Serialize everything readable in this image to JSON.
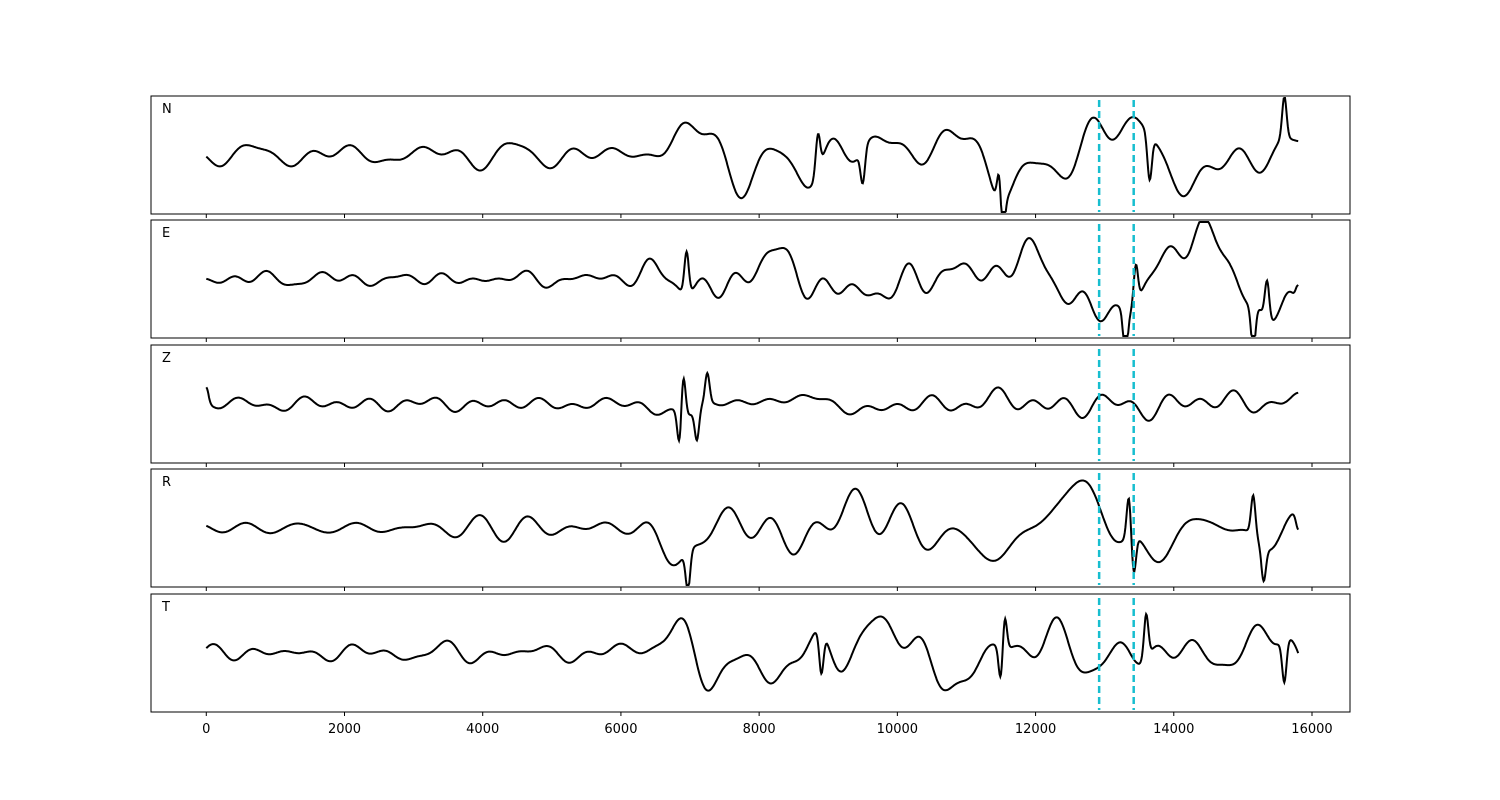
{
  "chart_data": {
    "type": "line",
    "title": "",
    "xlabel": "",
    "ylabel": "",
    "xlim": [
      -800,
      16550
    ],
    "x_ticks": [
      0,
      2000,
      4000,
      6000,
      8000,
      10000,
      12000,
      14000,
      16000
    ],
    "x_tick_labels": [
      "0",
      "2000",
      "4000",
      "6000",
      "8000",
      "10000",
      "12000",
      "14000",
      "16000"
    ],
    "sample_start": 0,
    "sample_end": 15800,
    "markers": {
      "color": "#17becf",
      "style": "dashed",
      "x": [
        12920,
        13420
      ]
    },
    "trace_color": "#000000",
    "grid": false,
    "panels": [
      {
        "name": "N",
        "onset": 6500,
        "pre_amp": 0.22,
        "post_amp": 0.95,
        "seed": 11,
        "events": [
          {
            "x": 8850,
            "y": 0.85
          },
          {
            "x": 9500,
            "y": -0.75
          },
          {
            "x": 11480,
            "y": 0.9
          },
          {
            "x": 11520,
            "y": -0.95
          },
          {
            "x": 13650,
            "y": -1.0
          },
          {
            "x": 15600,
            "y": 0.95
          }
        ]
      },
      {
        "name": "E",
        "onset": 6300,
        "pre_amp": 0.15,
        "post_amp": 0.8,
        "seed": 23,
        "events": [
          {
            "x": 6950,
            "y": 0.95
          },
          {
            "x": 13300,
            "y": -0.95
          },
          {
            "x": 13450,
            "y": 0.9
          },
          {
            "x": 15150,
            "y": -1.0
          },
          {
            "x": 15350,
            "y": 0.85
          },
          {
            "x": 15800,
            "y": 0.4
          }
        ]
      },
      {
        "name": "Z",
        "onset": 6200,
        "pre_amp": 0.12,
        "post_amp": 0.5,
        "seed": 37,
        "events": [
          {
            "x": 0,
            "y": 0.35
          },
          {
            "x": 6900,
            "y": 1.0
          },
          {
            "x": 6850,
            "y": -0.85
          },
          {
            "x": 7100,
            "y": -0.7
          },
          {
            "x": 7250,
            "y": 0.65
          }
        ]
      },
      {
        "name": "R",
        "onset": 6300,
        "pre_amp": 0.15,
        "post_amp": 0.7,
        "seed": 51,
        "events": [
          {
            "x": 6970,
            "y": -0.9
          },
          {
            "x": 13350,
            "y": 0.95
          },
          {
            "x": 13420,
            "y": -0.85
          },
          {
            "x": 15150,
            "y": 0.9
          },
          {
            "x": 15300,
            "y": -0.75
          },
          {
            "x": 15800,
            "y": -0.35
          }
        ]
      },
      {
        "name": "T",
        "onset": 6500,
        "pre_amp": 0.2,
        "post_amp": 0.85,
        "seed": 67,
        "events": [
          {
            "x": 8900,
            "y": -0.95
          },
          {
            "x": 11500,
            "y": -0.85
          },
          {
            "x": 11550,
            "y": 0.85
          },
          {
            "x": 13600,
            "y": 1.0
          },
          {
            "x": 15600,
            "y": -0.95
          }
        ]
      }
    ]
  }
}
